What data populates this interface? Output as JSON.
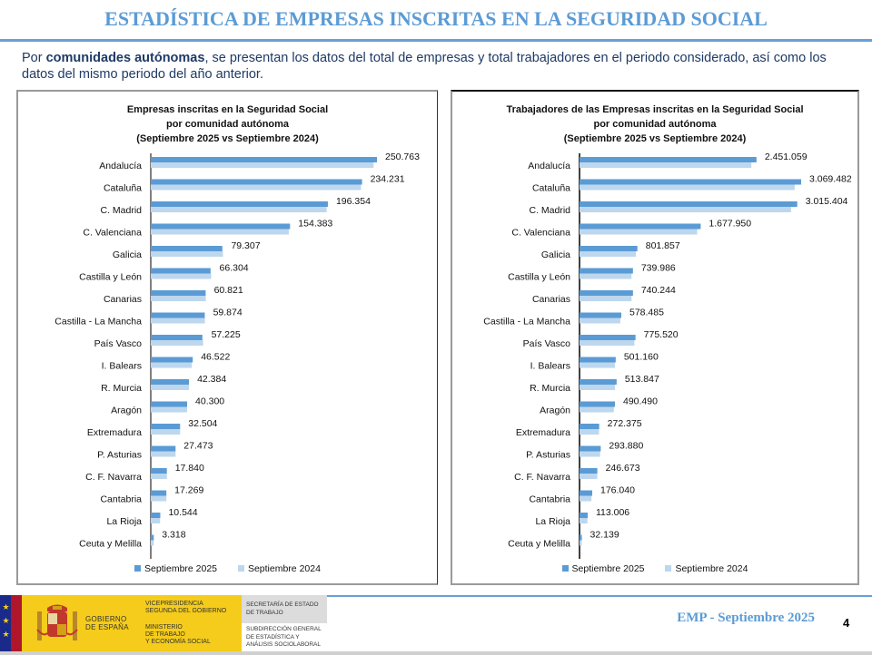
{
  "header": {
    "title": "ESTADÍSTICA DE EMPRESAS INSCRITAS EN LA SEGURIDAD SOCIAL",
    "intro_prefix": "Por ",
    "intro_bold": "comunidades autónomas",
    "intro_rest": ", se presentan los datos del total de empresas y total trabajadores en el periodo considerado, así como los datos del mismo periodo del año anterior."
  },
  "colors": {
    "accent": "#5b9bd5",
    "series_2025": "#5b9bd5",
    "series_2024": "#bdd7ee"
  },
  "chart_data": [
    {
      "type": "bar",
      "orientation": "horizontal",
      "title_lines": [
        "Empresas inscritas  en la Seguridad Social",
        "por comunidad  autónoma",
        "(Septiembre 2025 vs Septiembre 2024)"
      ],
      "categories": [
        "Andalucía",
        "Cataluña",
        "C. Madrid",
        "C. Valenciana",
        "Galicia",
        "Castilla y León",
        "Canarias",
        "Castilla - La Mancha",
        "País Vasco",
        "I. Balears",
        "R. Murcia",
        "Aragón",
        "Extremadura",
        "P. Asturias",
        "C. F. Navarra",
        "Cantabria",
        "La Rioja",
        "Ceuta y Melilla"
      ],
      "series": [
        {
          "name": "Septiembre 2025",
          "values": [
            250763,
            234231,
            196354,
            154383,
            79307,
            66304,
            60821,
            59874,
            57225,
            46522,
            42384,
            40300,
            32504,
            27473,
            17840,
            17269,
            10544,
            3318
          ]
        },
        {
          "name": "Septiembre 2024",
          "values": [
            247000,
            233000,
            195000,
            153000,
            80000,
            67000,
            61000,
            60000,
            58000,
            45500,
            42300,
            40300,
            32500,
            27500,
            17800,
            17300,
            10300,
            3200
          ]
        }
      ],
      "value_labels": [
        "250.763",
        "234.231",
        "196.354",
        "154.383",
        "79.307",
        "66.304",
        "60.821",
        "59.874",
        "57.225",
        "46.522",
        "42.384",
        "40.300",
        "32.504",
        "27.473",
        "17.840",
        "17.269",
        "10.544",
        "3.318"
      ],
      "xlim": [
        0,
        250763
      ],
      "legend": [
        "Septiembre 2025",
        "Septiembre 2024"
      ],
      "legend_position": "bottom",
      "grid": false
    },
    {
      "type": "bar",
      "orientation": "horizontal",
      "title_lines": [
        "Trabajadores  de las Empresas inscritas  en la Seguridad Social",
        "por comunidad  autónoma",
        "(Septiembre 2025 vs Septiembre 2024)"
      ],
      "categories": [
        "Andalucía",
        "Cataluña",
        "C. Madrid",
        "C. Valenciana",
        "Galicia",
        "Castilla y León",
        "Canarias",
        "Castilla - La Mancha",
        "País Vasco",
        "I. Balears",
        "R. Murcia",
        "Aragón",
        "Extremadura",
        "P. Asturias",
        "C. F. Navarra",
        "Cantabria",
        "La Rioja",
        "Ceuta y Melilla"
      ],
      "series": [
        {
          "name": "Septiembre 2025",
          "values": [
            2451059,
            3069482,
            3015404,
            1677950,
            801857,
            739986,
            740244,
            578485,
            775520,
            501160,
            513847,
            490490,
            272375,
            293880,
            246673,
            176040,
            113006,
            32139
          ]
        },
        {
          "name": "Septiembre 2024",
          "values": [
            2380000,
            2980000,
            2930000,
            1630000,
            780000,
            720000,
            720000,
            565000,
            760000,
            490000,
            490000,
            475000,
            270000,
            285000,
            245000,
            165000,
            110000,
            31000
          ]
        }
      ],
      "value_labels": [
        "2.451.059",
        "3.069.482",
        "3.015.404",
        "1.677.950",
        "801.857",
        "739.986",
        "740.244",
        "578.485",
        "775.520",
        "501.160",
        "513.847",
        "490.490",
        "272.375",
        "293.880",
        "246.673",
        "176.040",
        "113.006",
        "32.139"
      ],
      "xlim": [
        0,
        3069482
      ],
      "legend": [
        "Septiembre 2025",
        "Septiembre 2024"
      ],
      "legend_position": "bottom",
      "grid": false
    }
  ],
  "footer": {
    "gob_line1": "GOBIERNO",
    "gob_line2": "DE ESPAÑA",
    "vice_line1": "VICEPRESIDENCIA",
    "vice_line2": "SEGUNDA DEL GOBIERNO",
    "min_line1": "MINISTERIO",
    "min_line2": "DE TRABAJO",
    "min_line3": "Y ECONOMÍA SOCIAL",
    "sec_line1": "SECRETARÍA DE ESTADO",
    "sec_line2": "DE TRABAJO",
    "sub_line1": "SUBDIRECCIÓN GENERAL",
    "sub_line2": "DE ESTADÍSTICA Y",
    "sub_line3": "ANÁLISIS SOCIOLABORAL",
    "report": "EMP - Septiembre 2025",
    "page_number": "4"
  }
}
